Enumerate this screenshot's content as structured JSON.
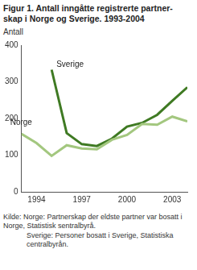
{
  "chart_data": {
    "type": "line",
    "title": [
      "Figur 1. Antall inngåtte registrerte partner-",
      "skap i Norge og Sverige. 1993-2004"
    ],
    "y_label": "Antall",
    "x": [
      1993,
      1994,
      1995,
      1996,
      1997,
      1998,
      1999,
      2000,
      2001,
      2002,
      2003,
      2004
    ],
    "series": [
      {
        "name": "Norge",
        "color": "#a3c77f",
        "values": [
          158,
          133,
          98,
          127,
          118,
          116,
          142,
          155,
          185,
          183,
          205,
          192
        ]
      },
      {
        "name": "Sverige",
        "color": "#3f7a23",
        "values": [
          null,
          null,
          333,
          160,
          130,
          125,
          145,
          178,
          188,
          210,
          248,
          285
        ]
      }
    ],
    "xlim": [
      1993,
      2004
    ],
    "xticks": [
      1994,
      1997,
      2000,
      2003
    ],
    "ylim": [
      0,
      400
    ],
    "yticks": [
      0,
      100,
      200,
      300,
      400
    ],
    "grid": false,
    "source": [
      "Kilde: Norge: Partnerskap der eldste partner var bosatt i Norge, Statistisk sentralbyrå.",
      "Sverige: Personer bosatt i Sverige, Statistiska centralbyrån."
    ]
  }
}
